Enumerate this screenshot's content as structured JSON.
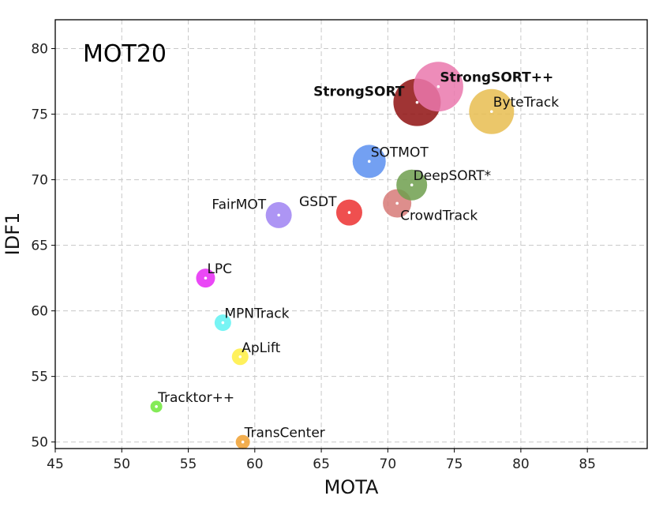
{
  "chart_data": {
    "type": "scatter",
    "title": "MOT20",
    "xlabel": "MOTA",
    "ylabel": "IDF1",
    "xlim": [
      45,
      89.5
    ],
    "ylim": [
      49.5,
      82.2
    ],
    "xticks": [
      45,
      50,
      55,
      60,
      65,
      70,
      75,
      80,
      85
    ],
    "yticks": [
      50,
      55,
      60,
      65,
      70,
      75,
      80
    ],
    "grid": true,
    "points": [
      {
        "name": "Tracktor++",
        "x": 52.6,
        "y": 52.7,
        "size": 0.5,
        "color": "#6ee83a",
        "label_pos": "right-top"
      },
      {
        "name": "TransCenter",
        "x": 59.1,
        "y": 50.0,
        "size": 0.6,
        "color": "#f0a030",
        "label_pos": "right-top"
      },
      {
        "name": "ApLift",
        "x": 58.9,
        "y": 56.5,
        "size": 0.7,
        "color": "#ffee40",
        "label_pos": "right-top"
      },
      {
        "name": "MPNTrack",
        "x": 57.6,
        "y": 59.1,
        "size": 0.7,
        "color": "#5ff2f2",
        "label_pos": "right-top"
      },
      {
        "name": "LPC",
        "x": 56.3,
        "y": 62.5,
        "size": 0.8,
        "color": "#e628f5",
        "label_pos": "right-top"
      },
      {
        "name": "FairMOT",
        "x": 61.8,
        "y": 67.3,
        "size": 1.1,
        "color": "#9f82f2",
        "label_pos": "left-top"
      },
      {
        "name": "GSDT",
        "x": 67.1,
        "y": 67.5,
        "size": 1.1,
        "color": "#ec3030",
        "label_pos": "left-top"
      },
      {
        "name": "CrowdTrack",
        "x": 70.7,
        "y": 68.2,
        "size": 1.2,
        "color": "#d77a78",
        "label_pos": "right-bottom"
      },
      {
        "name": "DeepSORT*",
        "x": 71.8,
        "y": 69.6,
        "size": 1.3,
        "color": "#6f9f4e",
        "label_pos": "right-top"
      },
      {
        "name": "SOTMOT",
        "x": 68.6,
        "y": 71.4,
        "size": 1.4,
        "color": "#5b8ff0",
        "label_pos": "right-top"
      },
      {
        "name": "ByteTrack",
        "x": 77.8,
        "y": 75.2,
        "size": 1.9,
        "color": "#e8bd50",
        "label_pos": "right-top"
      },
      {
        "name": "StrongSORT",
        "x": 72.2,
        "y": 75.9,
        "size": 2.0,
        "color": "#8f1010",
        "label_pos": "left-top",
        "bold": true
      },
      {
        "name": "StrongSORT++",
        "x": 73.8,
        "y": 77.1,
        "size": 2.1,
        "color": "#ea78ad",
        "label_pos": "right-top",
        "bold": true
      }
    ]
  }
}
